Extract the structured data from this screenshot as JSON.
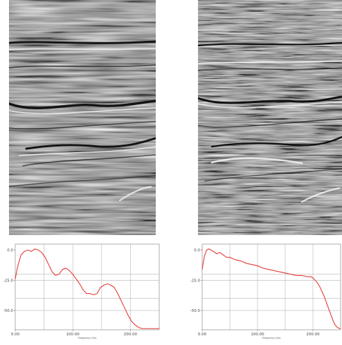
{
  "chart_data": [
    {
      "type": "line",
      "xlabel": "Frequency (Hz)",
      "ylabel": "",
      "xlim": [
        0,
        250
      ],
      "ylim": [
        -66,
        5
      ],
      "x_ticks": [
        "0.00",
        "100.00",
        "200.00"
      ],
      "x_tick_values": [
        0,
        100,
        200
      ],
      "y_ticks": [
        "0.0",
        "-25.0",
        "-50.0"
      ],
      "y_tick_values": [
        0,
        -25,
        -50
      ],
      "grid": true,
      "line_color": "#e53935",
      "series": [
        {
          "x": [
            0,
            4,
            10,
            16,
            22,
            28,
            34,
            40,
            46,
            52,
            58,
            64,
            70,
            76,
            82,
            88,
            94,
            100,
            106,
            112,
            118,
            124,
            130,
            136,
            142,
            148,
            154,
            160,
            166,
            172,
            178,
            184,
            190,
            196,
            202,
            208,
            214,
            220,
            226,
            232,
            238,
            244,
            250
          ],
          "values": [
            -24,
            -14,
            -4,
            -1,
            0,
            -1,
            1,
            0,
            -2,
            -6,
            -12,
            -18,
            -21,
            -20,
            -16,
            -15,
            -17,
            -20,
            -24,
            -28,
            -33,
            -36,
            -36,
            -37,
            -36,
            -31,
            -29,
            -28,
            -29,
            -31,
            -36,
            -42,
            -48,
            -54,
            -59,
            -62,
            -64,
            -65,
            -65,
            -65,
            -65,
            -65,
            -65
          ]
        }
      ]
    },
    {
      "type": "line",
      "xlabel": "Frequency (Hz)",
      "ylabel": "",
      "xlim": [
        0,
        250
      ],
      "ylim": [
        -66,
        5
      ],
      "x_ticks": [
        "0.00",
        "100.00",
        "200.00"
      ],
      "x_tick_values": [
        0,
        100,
        200
      ],
      "y_ticks": [
        "0.0",
        "-25.0",
        "-50.0"
      ],
      "y_tick_values": [
        0,
        -25,
        -50
      ],
      "grid": true,
      "line_color": "#e53935",
      "series": [
        {
          "x": [
            0,
            4,
            8,
            12,
            16,
            20,
            26,
            32,
            38,
            44,
            50,
            60,
            70,
            80,
            90,
            100,
            110,
            120,
            130,
            140,
            150,
            160,
            170,
            180,
            190,
            196,
            200,
            204,
            208,
            212,
            216,
            220,
            224,
            228,
            232,
            236,
            240,
            244,
            248,
            250
          ],
          "values": [
            -16,
            -5,
            0,
            1,
            0,
            -1,
            -3,
            -2,
            -4,
            -6,
            -6,
            -8,
            -9,
            -11,
            -12,
            -13,
            -15,
            -16,
            -17,
            -18,
            -19,
            -20,
            -21,
            -21,
            -22,
            -22,
            -23,
            -25,
            -27,
            -30,
            -34,
            -38,
            -43,
            -48,
            -53,
            -58,
            -62,
            -64,
            -65,
            -65
          ]
        }
      ]
    }
  ]
}
